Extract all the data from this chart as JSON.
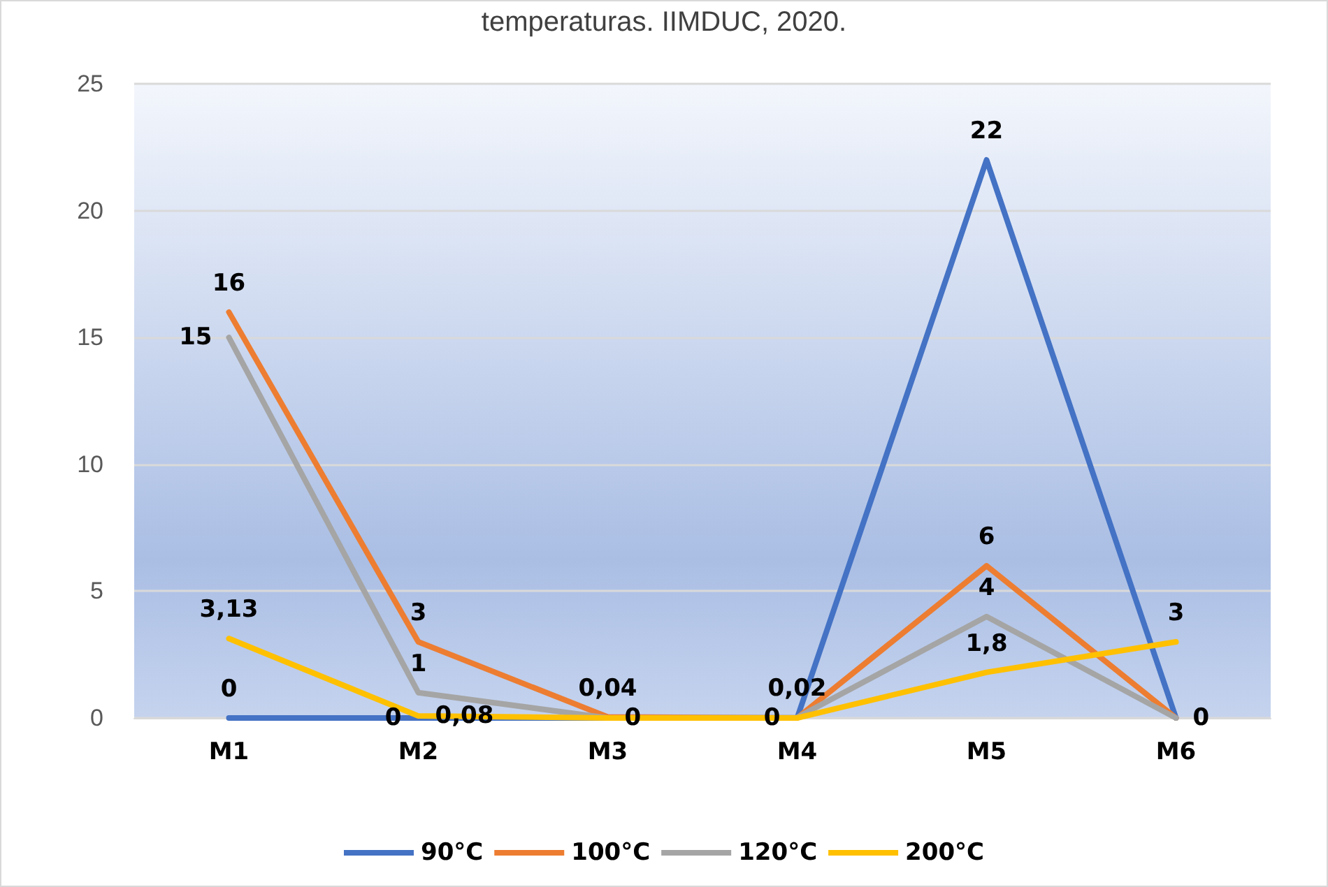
{
  "chart_data": {
    "type": "line",
    "title": "temperaturas. IIMDUC, 2020.",
    "categories": [
      "M1",
      "M2",
      "M3",
      "M4",
      "M5",
      "M6"
    ],
    "series": [
      {
        "name": "90°C",
        "color": "#4472c4",
        "values": [
          0,
          0,
          0,
          0,
          22,
          0
        ],
        "value_labels": [
          "0",
          "0",
          "0",
          "0",
          "22",
          "0"
        ]
      },
      {
        "name": "100°C",
        "color": "#ed7d31",
        "values": [
          16,
          3,
          0.04,
          0,
          6,
          0
        ],
        "value_labels": [
          "16",
          "3",
          "0,04",
          null,
          "6",
          null
        ]
      },
      {
        "name": "120°C",
        "color": "#a5a5a5",
        "values": [
          15,
          1,
          0,
          0.02,
          4,
          0
        ],
        "value_labels": [
          "15",
          "1",
          null,
          "0,02",
          "4",
          null
        ]
      },
      {
        "name": "200°C",
        "color": "#ffc000",
        "values": [
          3.13,
          0.08,
          0,
          0,
          1.8,
          3
        ],
        "value_labels": [
          "3,13",
          "0,08",
          null,
          null,
          "1,8",
          "3"
        ]
      }
    ],
    "ylim": [
      0,
      25
    ],
    "yticks": [
      0,
      5,
      10,
      15,
      20,
      25
    ],
    "grid": "y",
    "legend": "bottom",
    "marker": "none",
    "line_style": "solid"
  }
}
